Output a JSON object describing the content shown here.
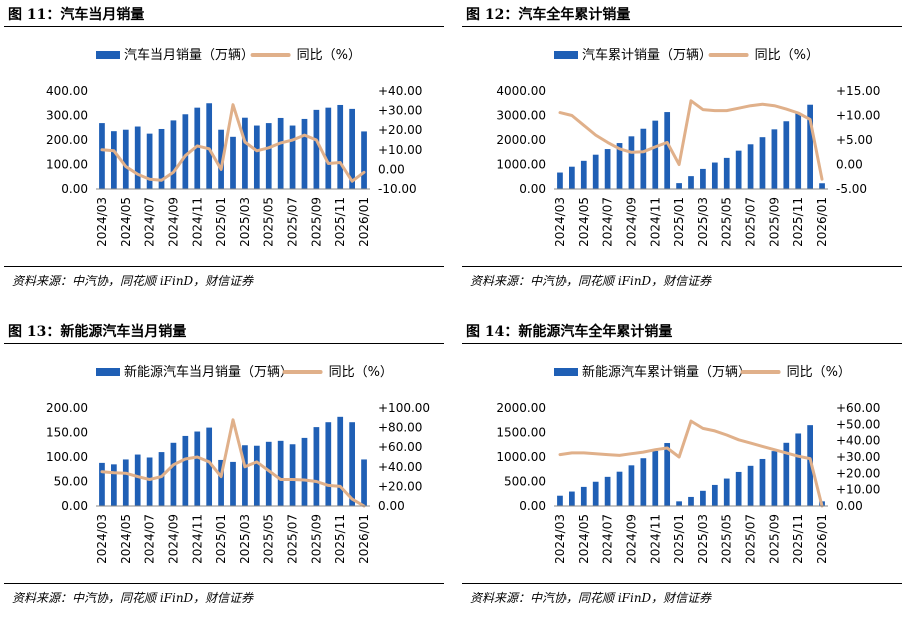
{
  "colors": {
    "bar": "#1f5fb5",
    "line": "#e0b08a"
  },
  "panels": [
    {
      "title": "图 11：汽车当月销量",
      "source": "资料来源：中汽协，同花顺 iFinD，财信证券",
      "chart_data": {
        "type": "bar+line",
        "categories": [
          "2024/03",
          "2024/04",
          "2024/05",
          "2024/06",
          "2024/07",
          "2024/08",
          "2024/09",
          "2024/10",
          "2024/11",
          "2024/12",
          "2025/01",
          "2025/02",
          "2025/03",
          "2025/04",
          "2025/05",
          "2025/06",
          "2025/07",
          "2025/08",
          "2025/09",
          "2025/10",
          "2025/11",
          "2025/12",
          "2026/01"
        ],
        "tick_labels": [
          "2024/03",
          "2024/05",
          "2024/07",
          "2024/09",
          "2024/11",
          "2025/01",
          "2025/03",
          "2025/05",
          "2025/07",
          "2025/09",
          "2025/11",
          "2026/01"
        ],
        "series": [
          {
            "name": "汽车当月销量（万辆）",
            "type": "bar",
            "axis": "left",
            "values": [
              269,
              236,
              242,
              255,
              226,
              245,
              280,
              305,
              332,
              350,
              242,
              213,
              291,
              259,
              269,
              290,
              259,
              286,
              323,
              332,
              343,
              327,
              235
            ]
          },
          {
            "name": "同比（%）",
            "type": "line",
            "axis": "right",
            "values": [
              10,
              9.5,
              1.5,
              -2.5,
              -5,
              -5.5,
              -1.5,
              7,
              12,
              10.5,
              0,
              33,
              14,
              9.5,
              11,
              13.5,
              15,
              17.5,
              15,
              3,
              3.5,
              -6,
              -1.5
            ]
          }
        ],
        "y_left": {
          "min": 0,
          "max": 400,
          "ticks": [
            "0.00",
            "100.00",
            "200.00",
            "300.00",
            "400.00"
          ]
        },
        "y_right": {
          "min": -10,
          "max": 40,
          "ticks": [
            "-10.00",
            "0.00",
            "+10.00",
            "+20.00",
            "+30.00",
            "+40.00"
          ]
        },
        "legend": [
          "汽车当月销量（万辆）",
          "同比（%）"
        ]
      }
    },
    {
      "title": "图 12：汽车全年累计销量",
      "source": "资料来源：中汽协，同花顺 iFinD，财信证券",
      "chart_data": {
        "type": "bar+line",
        "categories": [
          "2024/03",
          "2024/04",
          "2024/05",
          "2024/06",
          "2024/07",
          "2024/08",
          "2024/09",
          "2024/10",
          "2024/11",
          "2024/12",
          "2025/01",
          "2025/02",
          "2025/03",
          "2025/04",
          "2025/05",
          "2025/06",
          "2025/07",
          "2025/08",
          "2025/09",
          "2025/10",
          "2025/11",
          "2025/12",
          "2026/01"
        ],
        "tick_labels": [
          "2024/03",
          "2024/05",
          "2024/07",
          "2024/09",
          "2024/11",
          "2025/01",
          "2025/03",
          "2025/05",
          "2025/07",
          "2025/09",
          "2025/11",
          "2026/01"
        ],
        "series": [
          {
            "name": "汽车累计销量（万辆）",
            "type": "bar",
            "axis": "left",
            "values": [
              672,
              910,
              1150,
              1400,
              1630,
              1875,
              2150,
              2460,
              2790,
              3140,
              240,
              525,
              820,
              1080,
              1270,
              1565,
              1825,
              2115,
              2435,
              2765,
              3110,
              3440,
              235
            ]
          },
          {
            "name": "同比（%）",
            "type": "line",
            "axis": "right",
            "values": [
              10.6,
              10,
              8,
              6,
              4.5,
              3.2,
              2.5,
              2.6,
              3.6,
              4.5,
              0,
              13,
              11.2,
              11,
              11,
              11.5,
              12,
              12.3,
              12,
              11.3,
              10.5,
              9.2,
              -3
            ]
          }
        ],
        "y_left": {
          "min": 0,
          "max": 4000,
          "ticks": [
            "0.00",
            "1000.00",
            "2000.00",
            "3000.00",
            "4000.00"
          ]
        },
        "y_right": {
          "min": -5,
          "max": 15,
          "ticks": [
            "-5.00",
            "0.00",
            "+5.00",
            "+10.00",
            "+15.00"
          ]
        },
        "legend": [
          "汽车累计销量（万辆）",
          "同比（%）"
        ]
      }
    },
    {
      "title": "图 13：新能源汽车当月销量",
      "source": "资料来源：中汽协，同花顺 iFinD，财信证券",
      "chart_data": {
        "type": "bar+line",
        "categories": [
          "2024/03",
          "2024/04",
          "2024/05",
          "2024/06",
          "2024/07",
          "2024/08",
          "2024/09",
          "2024/10",
          "2024/11",
          "2024/12",
          "2025/01",
          "2025/02",
          "2025/03",
          "2025/04",
          "2025/05",
          "2025/06",
          "2025/07",
          "2025/08",
          "2025/09",
          "2025/10",
          "2025/11",
          "2025/12",
          "2026/01"
        ],
        "tick_labels": [
          "2024/03",
          "2024/05",
          "2024/07",
          "2024/09",
          "2024/11",
          "2025/01",
          "2025/03",
          "2025/05",
          "2025/07",
          "2025/09",
          "2025/11",
          "2026/01"
        ],
        "series": [
          {
            "name": "新能源汽车当月销量（万辆）",
            "type": "bar",
            "axis": "left",
            "values": [
              88,
              85,
              95,
              105,
              99,
              110,
              129,
              143,
              152,
              160,
              94,
              90,
              124,
              123,
              131,
              133,
              126,
              139,
              161,
              171,
              182,
              171,
              95
            ]
          },
          {
            "name": "同比（%）",
            "type": "line",
            "axis": "right",
            "values": [
              35,
              34,
              33.5,
              30,
              27,
              30,
              42,
              48,
              50,
              45,
              30,
              88,
              40,
              45,
              36,
              27,
              27,
              26.5,
              25,
              21,
              20,
              7,
              0
            ]
          }
        ],
        "y_left": {
          "min": 0,
          "max": 200,
          "ticks": [
            "0.00",
            "50.00",
            "100.00",
            "150.00",
            "200.00"
          ]
        },
        "y_right": {
          "min": 0,
          "max": 100,
          "ticks": [
            "0.00",
            "+20.00",
            "+40.00",
            "+60.00",
            "+80.00",
            "+100.00"
          ]
        },
        "legend": [
          "新能源汽车当月销量（万辆）",
          "同比（%）"
        ]
      }
    },
    {
      "title": "图 14：新能源汽车全年累计销量",
      "source": "资料来源：中汽协，同花顺 iFinD，财信证券",
      "chart_data": {
        "type": "bar+line",
        "categories": [
          "2024/03",
          "2024/04",
          "2024/05",
          "2024/06",
          "2024/07",
          "2024/08",
          "2024/09",
          "2024/10",
          "2024/11",
          "2024/12",
          "2025/01",
          "2025/02",
          "2025/03",
          "2025/04",
          "2025/05",
          "2025/06",
          "2025/07",
          "2025/08",
          "2025/09",
          "2025/10",
          "2025/11",
          "2025/12",
          "2026/01"
        ],
        "tick_labels": [
          "2024/03",
          "2024/05",
          "2024/07",
          "2024/09",
          "2024/11",
          "2025/01",
          "2025/03",
          "2025/05",
          "2025/07",
          "2025/09",
          "2025/11",
          "2026/01"
        ],
        "series": [
          {
            "name": "新能源汽车累计销量（万辆）",
            "type": "bar",
            "axis": "left",
            "values": [
              210,
              295,
              390,
              495,
              595,
              700,
              830,
              975,
              1125,
              1285,
              95,
              185,
              310,
              430,
              560,
              695,
              820,
              960,
              1120,
              1290,
              1480,
              1650,
              95
            ]
          },
          {
            "name": "同比（%）",
            "type": "line",
            "axis": "right",
            "values": [
              31.5,
              32.5,
              32.5,
              32,
              31.5,
              31,
              32,
              33,
              34.5,
              35.5,
              30,
              52,
              47.5,
              46,
              43.5,
              40.5,
              38.5,
              36.5,
              34.5,
              32.5,
              30.5,
              29,
              0
            ]
          }
        ],
        "y_left": {
          "min": 0,
          "max": 2000,
          "ticks": [
            "0.00",
            "500.00",
            "1000.00",
            "1500.00",
            "2000.00"
          ]
        },
        "y_right": {
          "min": 0,
          "max": 60,
          "ticks": [
            "0.00",
            "+10.00",
            "+20.00",
            "+30.00",
            "+40.00",
            "+50.00",
            "+60.00"
          ]
        },
        "legend": [
          "新能源汽车累计销量（万辆）",
          "同比（%）"
        ]
      }
    }
  ]
}
